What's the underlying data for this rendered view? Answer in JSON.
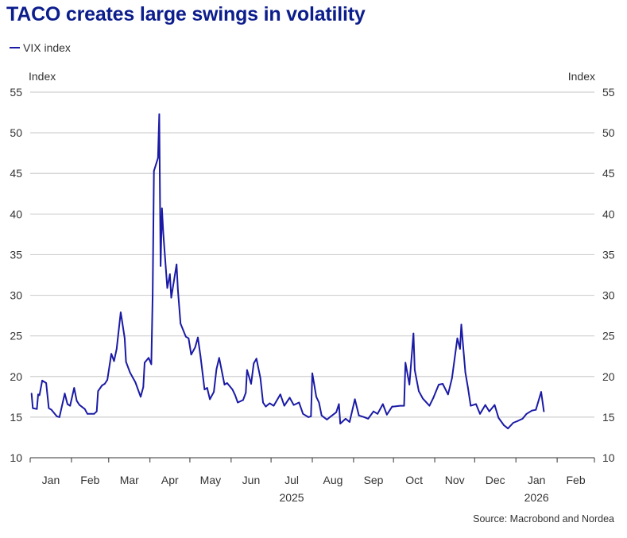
{
  "title": "TACO creates large swings in volatility",
  "source": "Source: Macrobond and Nordea",
  "colors": {
    "line": "#1a1aa6",
    "title": "#0c1d8c",
    "grid": "#cfcfcf"
  },
  "chart_data": {
    "type": "line",
    "title": "TACO creates large swings in volatility",
    "ylabel_left": "Index",
    "ylabel_right": "Index",
    "ylim": [
      10,
      55
    ],
    "yticks": [
      10,
      15,
      20,
      25,
      30,
      35,
      40,
      45,
      50,
      55
    ],
    "grid": true,
    "legend_position": "top-left",
    "x_range": [
      "2025-01-01",
      "2026-02-28"
    ],
    "month_labels": [
      "Jan",
      "Feb",
      "Mar",
      "Apr",
      "May",
      "Jun",
      "Jul",
      "Aug",
      "Sep",
      "Oct",
      "Nov",
      "Dec",
      "Jan",
      "Feb"
    ],
    "year_labels": [
      {
        "label": "2025",
        "month_index": 6
      },
      {
        "label": "2026",
        "month_index": 12
      }
    ],
    "series": [
      {
        "name": "VIX index",
        "color": "#1a1aa6",
        "x": [
          "2025-01-02",
          "2025-01-03",
          "2025-01-06",
          "2025-01-07",
          "2025-01-08",
          "2025-01-10",
          "2025-01-13",
          "2025-01-15",
          "2025-01-17",
          "2025-01-21",
          "2025-01-23",
          "2025-01-27",
          "2025-01-29",
          "2025-01-31",
          "2025-02-03",
          "2025-02-05",
          "2025-02-07",
          "2025-02-11",
          "2025-02-13",
          "2025-02-18",
          "2025-02-20",
          "2025-02-21",
          "2025-02-24",
          "2025-02-26",
          "2025-02-28",
          "2025-03-03",
          "2025-03-05",
          "2025-03-07",
          "2025-03-10",
          "2025-03-11",
          "2025-03-13",
          "2025-03-14",
          "2025-03-17",
          "2025-03-19",
          "2025-03-21",
          "2025-03-25",
          "2025-03-27",
          "2025-03-28",
          "2025-03-31",
          "2025-04-02",
          "2025-04-03",
          "2025-04-04",
          "2025-04-07",
          "2025-04-08",
          "2025-04-09",
          "2025-04-10",
          "2025-04-11",
          "2025-04-14",
          "2025-04-16",
          "2025-04-17",
          "2025-04-21",
          "2025-04-22",
          "2025-04-24",
          "2025-04-28",
          "2025-04-30",
          "2025-05-02",
          "2025-05-05",
          "2025-05-07",
          "2025-05-09",
          "2025-05-12",
          "2025-05-14",
          "2025-05-16",
          "2025-05-19",
          "2025-05-21",
          "2025-05-23",
          "2025-05-27",
          "2025-05-29",
          "2025-06-02",
          "2025-06-04",
          "2025-06-06",
          "2025-06-10",
          "2025-06-12",
          "2025-06-13",
          "2025-06-16",
          "2025-06-18",
          "2025-06-20",
          "2025-06-23",
          "2025-06-25",
          "2025-06-27",
          "2025-06-30",
          "2025-07-03",
          "2025-07-08",
          "2025-07-11",
          "2025-07-15",
          "2025-07-18",
          "2025-07-22",
          "2025-07-25",
          "2025-07-29",
          "2025-07-31",
          "2025-08-01",
          "2025-08-04",
          "2025-08-06",
          "2025-08-08",
          "2025-08-12",
          "2025-08-15",
          "2025-08-19",
          "2025-08-21",
          "2025-08-22",
          "2025-08-26",
          "2025-08-29",
          "2025-09-02",
          "2025-09-05",
          "2025-09-09",
          "2025-09-12",
          "2025-09-16",
          "2025-09-19",
          "2025-09-23",
          "2025-09-26",
          "2025-09-30",
          "2025-10-01",
          "2025-10-06",
          "2025-10-09",
          "2025-10-10",
          "2025-10-13",
          "2025-10-16",
          "2025-10-17",
          "2025-10-20",
          "2025-10-23",
          "2025-10-28",
          "2025-10-31",
          "2025-11-04",
          "2025-11-07",
          "2025-11-11",
          "2025-11-14",
          "2025-11-18",
          "2025-11-20",
          "2025-11-21",
          "2025-11-24",
          "2025-11-26",
          "2025-11-28",
          "2025-12-02",
          "2025-12-05",
          "2025-12-09",
          "2025-12-12",
          "2025-12-16",
          "2025-12-19",
          "2025-12-23",
          "2025-12-26",
          "2025-12-30",
          "2026-01-02",
          "2026-01-06",
          "2026-01-09",
          "2026-01-13",
          "2026-01-16",
          "2026-01-20",
          "2026-01-22"
        ],
        "values": [
          17.9,
          16.1,
          16.0,
          17.8,
          17.7,
          19.5,
          19.2,
          16.1,
          15.9,
          15.1,
          15.0,
          17.9,
          16.6,
          16.4,
          18.6,
          17.0,
          16.5,
          16.0,
          15.4,
          15.4,
          15.7,
          18.2,
          18.9,
          19.1,
          19.6,
          22.8,
          21.9,
          23.4,
          27.9,
          26.9,
          24.7,
          21.8,
          20.5,
          19.9,
          19.3,
          17.5,
          18.7,
          21.7,
          22.3,
          21.5,
          30.0,
          45.3,
          46.9,
          52.3,
          33.6,
          40.7,
          37.6,
          30.9,
          32.6,
          29.7,
          33.8,
          30.6,
          26.5,
          24.9,
          24.7,
          22.7,
          23.6,
          24.8,
          22.5,
          18.4,
          18.6,
          17.2,
          18.1,
          20.9,
          22.3,
          19.0,
          19.2,
          18.4,
          17.7,
          16.8,
          17.1,
          18.0,
          20.8,
          19.1,
          21.6,
          22.2,
          19.8,
          16.8,
          16.3,
          16.7,
          16.4,
          17.8,
          16.4,
          17.4,
          16.5,
          16.8,
          15.4,
          15.0,
          15.1,
          20.4,
          17.5,
          16.8,
          15.2,
          14.7,
          15.1,
          15.6,
          16.6,
          14.2,
          14.8,
          14.4,
          17.2,
          15.2,
          15.0,
          14.8,
          15.7,
          15.4,
          16.6,
          15.3,
          16.3,
          16.3,
          16.4,
          16.4,
          21.7,
          19.0,
          25.3,
          20.8,
          18.2,
          17.3,
          16.4,
          17.4,
          19.0,
          19.1,
          17.8,
          19.8,
          24.7,
          23.4,
          26.4,
          20.5,
          18.6,
          16.4,
          16.6,
          15.4,
          16.5,
          15.7,
          16.5,
          14.9,
          14.0,
          13.6,
          14.3,
          14.5,
          14.8,
          15.4,
          15.8,
          15.9,
          18.1,
          15.7
        ]
      }
    ]
  }
}
